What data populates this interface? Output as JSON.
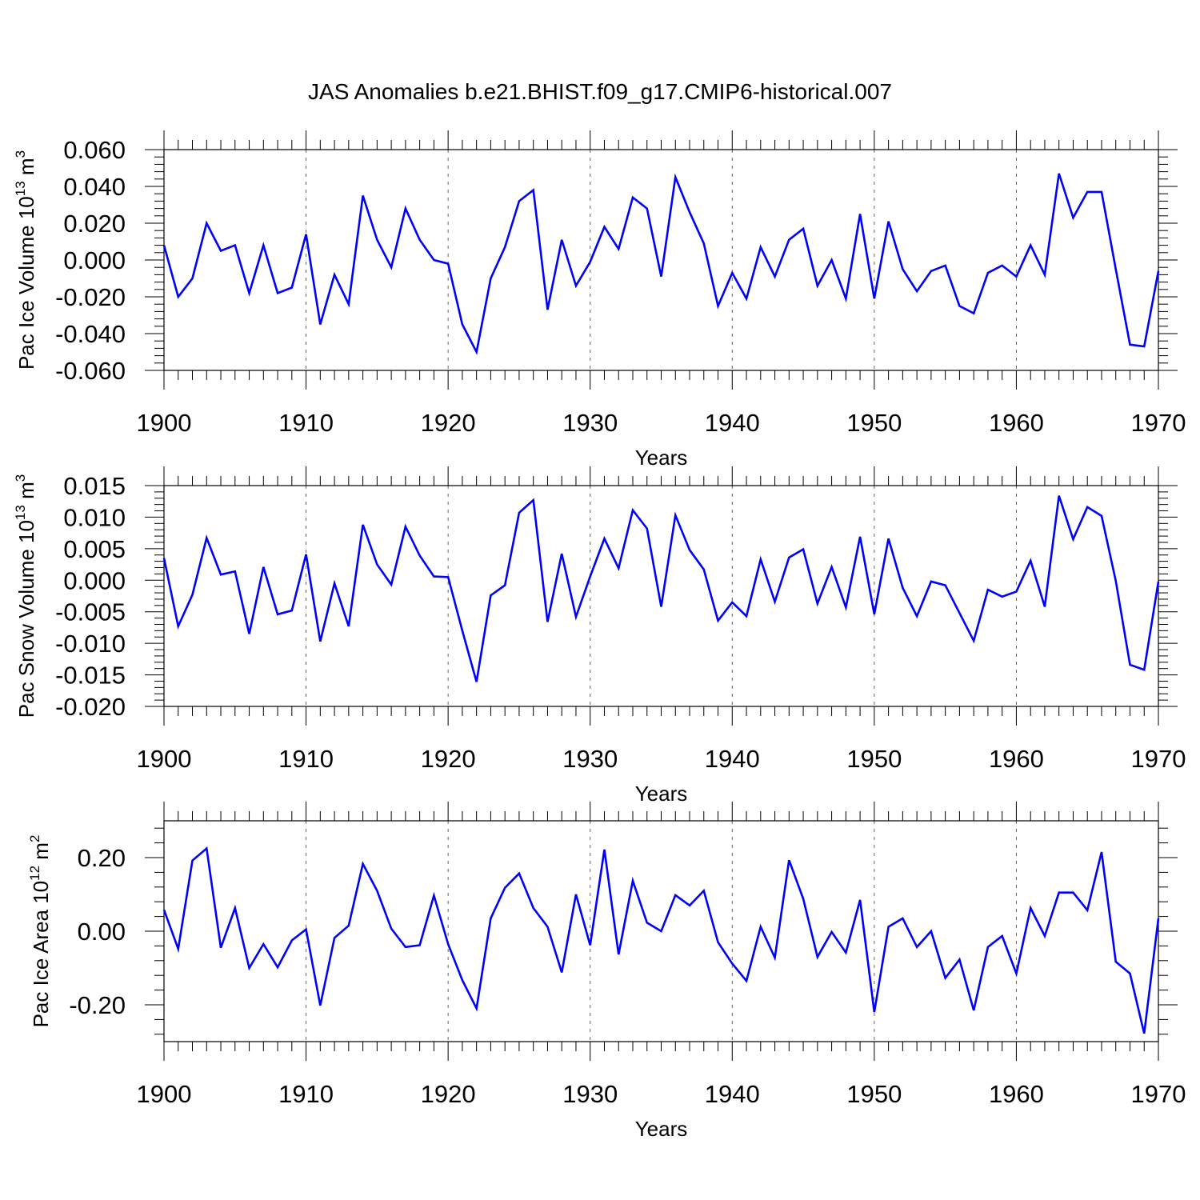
{
  "figure": {
    "title": "JAS Anomalies b.e21.BHIST.f09_g17.CMIP6-historical.007"
  },
  "line_color": "#0000ff",
  "chart_data": [
    {
      "type": "line",
      "ylabel_text": "Pac Ice Volume 10",
      "ylabel_exp": "13",
      "ylabel_unit": " m",
      "ylabel_unit_exp": "3",
      "xlabel": "Years",
      "xlim": [
        1900,
        1970
      ],
      "ylim": [
        -0.06,
        0.06
      ],
      "yticks": [
        -0.06,
        -0.04,
        -0.02,
        0.0,
        0.02,
        0.04,
        0.06
      ],
      "ytick_labels": [
        "-0.060",
        "-0.040",
        "-0.020",
        "0.000",
        "0.020",
        "0.040",
        "0.060"
      ],
      "xticks": [
        1900,
        1910,
        1920,
        1930,
        1940,
        1950,
        1960,
        1970
      ],
      "xtick_labels": [
        "1900",
        "1910",
        "1920",
        "1930",
        "1940",
        "1950",
        "1960",
        "1970"
      ],
      "series": [
        {
          "name": "Pac Ice Volume",
          "x_start": 1900,
          "values": [
            0.008,
            -0.02,
            -0.01,
            0.02,
            0.005,
            0.008,
            -0.018,
            0.008,
            -0.018,
            -0.015,
            0.014,
            -0.035,
            -0.008,
            -0.024,
            0.035,
            0.011,
            -0.004,
            0.028,
            0.011,
            0.0,
            -0.002,
            -0.035,
            -0.05,
            -0.01,
            0.007,
            0.032,
            0.038,
            -0.027,
            0.011,
            -0.014,
            -0.001,
            0.018,
            0.006,
            0.034,
            0.028,
            -0.009,
            0.045,
            0.026,
            0.009,
            -0.025,
            -0.007,
            -0.021,
            0.007,
            -0.009,
            0.011,
            0.017,
            -0.014,
            0.0,
            -0.021,
            0.025,
            -0.021,
            0.021,
            -0.005,
            -0.017,
            -0.006,
            -0.003,
            -0.025,
            -0.029,
            -0.007,
            -0.003,
            -0.009,
            0.008,
            -0.008,
            0.047,
            0.023,
            0.037,
            0.037,
            -0.005,
            -0.046,
            -0.047,
            -0.006
          ]
        }
      ]
    },
    {
      "type": "line",
      "ylabel_text": "Pac Snow Volume 10",
      "ylabel_exp": "13",
      "ylabel_unit": " m",
      "ylabel_unit_exp": "3",
      "xlabel": "Years",
      "xlim": [
        1900,
        1970
      ],
      "ylim": [
        -0.02,
        0.015
      ],
      "yticks": [
        -0.02,
        -0.015,
        -0.01,
        -0.005,
        0.0,
        0.005,
        0.01,
        0.015
      ],
      "ytick_labels": [
        "-0.020",
        "-0.015",
        "-0.010",
        "-0.005",
        "0.000",
        "0.005",
        "0.010",
        "0.015"
      ],
      "xticks": [
        1900,
        1910,
        1920,
        1930,
        1940,
        1950,
        1960,
        1970
      ],
      "xtick_labels": [
        "1900",
        "1910",
        "1920",
        "1930",
        "1940",
        "1950",
        "1960",
        "1970"
      ],
      "series": [
        {
          "name": "Pac Snow Volume",
          "x_start": 1900,
          "values": [
            0.0035,
            -0.0073,
            -0.0023,
            0.0067,
            0.0009,
            0.0014,
            -0.0085,
            0.0021,
            -0.0054,
            -0.0048,
            0.0041,
            -0.0097,
            -0.0005,
            -0.0073,
            0.0088,
            0.0025,
            -0.0007,
            0.0085,
            0.0039,
            0.0006,
            0.0005,
            -0.008,
            -0.0161,
            -0.0024,
            -0.0008,
            0.0107,
            0.0127,
            -0.0066,
            0.0042,
            -0.0058,
            0.0006,
            0.0066,
            0.0019,
            0.0111,
            0.0082,
            -0.0042,
            0.0103,
            0.0048,
            0.0017,
            -0.0064,
            -0.0035,
            -0.0057,
            0.0033,
            -0.0034,
            0.0036,
            0.0049,
            -0.0037,
            0.0021,
            -0.0043,
            0.0069,
            -0.0054,
            0.0066,
            -0.0012,
            -0.0057,
            -0.0002,
            -0.0008,
            -0.0052,
            -0.0096,
            -0.0015,
            -0.0026,
            -0.0018,
            0.0031,
            -0.0042,
            0.0134,
            0.0065,
            0.0116,
            0.0102,
            -0.0001,
            -0.0134,
            -0.0142,
            -0.0002
          ]
        }
      ]
    },
    {
      "type": "line",
      "ylabel_text": "Pac Ice Area 10",
      "ylabel_exp": "12",
      "ylabel_unit": " m",
      "ylabel_unit_exp": "2",
      "xlabel": "Years",
      "xlim": [
        1900,
        1970
      ],
      "ylim": [
        -0.3,
        0.3
      ],
      "yticks": [
        -0.2,
        0.0,
        0.2
      ],
      "ytick_labels": [
        "-0.20",
        "0.00",
        "0.20"
      ],
      "xticks": [
        1900,
        1910,
        1920,
        1930,
        1940,
        1950,
        1960,
        1970
      ],
      "xtick_labels": [
        "1900",
        "1910",
        "1920",
        "1930",
        "1940",
        "1950",
        "1960",
        "1970"
      ],
      "series": [
        {
          "name": "Pac Ice Area",
          "x_start": 1900,
          "values": [
            0.058,
            -0.048,
            0.192,
            0.225,
            -0.045,
            0.063,
            -0.1,
            -0.035,
            -0.098,
            -0.025,
            0.005,
            -0.202,
            -0.018,
            0.015,
            0.183,
            0.11,
            0.007,
            -0.043,
            -0.038,
            0.097,
            -0.035,
            -0.133,
            -0.21,
            0.035,
            0.118,
            0.157,
            0.063,
            0.012,
            -0.112,
            0.1,
            -0.038,
            0.222,
            -0.063,
            0.137,
            0.023,
            0.0,
            0.098,
            0.07,
            0.11,
            -0.03,
            -0.088,
            -0.135,
            0.012,
            -0.072,
            0.193,
            0.088,
            -0.07,
            -0.002,
            -0.058,
            0.085,
            -0.22,
            0.012,
            0.035,
            -0.043,
            0.0,
            -0.127,
            -0.077,
            -0.215,
            -0.043,
            -0.013,
            -0.115,
            0.063,
            -0.013,
            0.105,
            0.105,
            0.057,
            0.215,
            -0.083,
            -0.115,
            -0.278,
            0.035
          ]
        }
      ]
    }
  ]
}
